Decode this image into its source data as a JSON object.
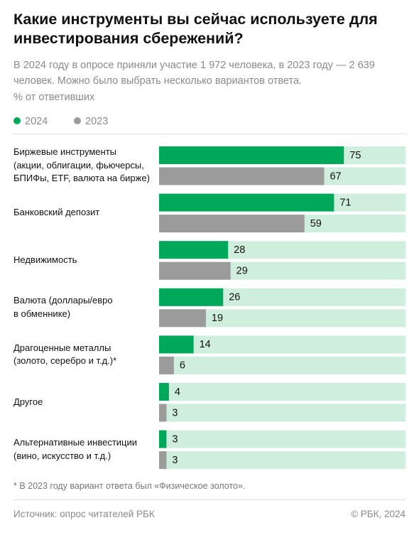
{
  "chart_data": {
    "type": "bar",
    "orientation": "horizontal",
    "title": "Какие инструменты вы сейчас используете для инвестирования сбережений?",
    "subtitle": "В 2024 году в опросе приняли участие 1 972 человека, в 2023 году — 2 639 человек. Можно было выбрать несколько вариантов ответа.",
    "value_axis_label": "% от ответивших",
    "categories": [
      "Биржевые инструменты\n(акции, облигации, фьючерсы,\nБПИФы, ETF, валюта на бирже)",
      "Банковский депозит",
      "Недвижимость",
      "Валюта (доллары/евро\nв обменнике)",
      "Драгоценные металлы\n(золото, серебро и т.д.)*",
      "Другое",
      "Альтернативные инвестиции\n(вино, искусство и т.д.)"
    ],
    "series": [
      {
        "name": "2024",
        "color": "#00a85a",
        "values": [
          75,
          71,
          28,
          26,
          14,
          4,
          3
        ]
      },
      {
        "name": "2023",
        "color": "#9b9b9b",
        "values": [
          67,
          59,
          29,
          19,
          6,
          3,
          3
        ]
      }
    ],
    "track_color": "#cfeedd",
    "xlim": [
      0,
      100
    ],
    "footnote": "* В 2023 году вариант ответа был «Физическое золото».",
    "source": "Источник: опрос читателей РБК",
    "credit": "© РБК, 2024"
  }
}
